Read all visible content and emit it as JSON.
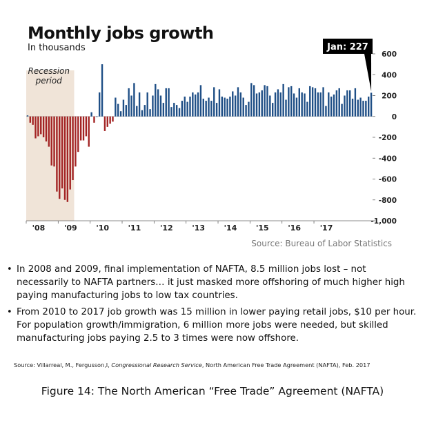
{
  "chart_data": {
    "type": "bar",
    "title": "Monthly jobs growth",
    "subtitle": "In thousands",
    "ylim": [
      -1000,
      600
    ],
    "yticks": [
      600,
      400,
      200,
      0,
      -200,
      -400,
      -600,
      -800,
      -1000
    ],
    "ytick_labels": [
      "600",
      "400",
      "200",
      "0",
      "-200",
      "-400",
      "-600",
      "-800",
      "-1,000"
    ],
    "xtick_labels": [
      "'08",
      "'09",
      "'10",
      "'11",
      "'12",
      "'13",
      "'14",
      "'15",
      "'16",
      "'17"
    ],
    "shaded_region_label": "Recession period",
    "shaded_region_months": [
      0,
      18
    ],
    "annotation": "Jan: 227",
    "colors": {
      "positive": "#1f4f86",
      "negative": "#a32424",
      "shade": "#f0e4d8",
      "callout": "#000000"
    },
    "values": [
      10,
      -60,
      -80,
      -210,
      -190,
      -170,
      -200,
      -240,
      -290,
      -470,
      -480,
      -720,
      -790,
      -690,
      -800,
      -820,
      -700,
      -610,
      -480,
      -340,
      -230,
      -230,
      -190,
      -290,
      40,
      -60,
      0,
      230,
      500,
      -140,
      -100,
      -70,
      -50,
      180,
      120,
      50,
      160,
      110,
      270,
      200,
      320,
      100,
      230,
      60,
      110,
      230,
      70,
      200,
      310,
      260,
      200,
      130,
      270,
      270,
      90,
      130,
      110,
      80,
      150,
      190,
      140,
      190,
      230,
      210,
      230,
      300,
      170,
      150,
      180,
      150,
      280,
      130,
      260,
      190,
      180,
      170,
      190,
      240,
      200,
      280,
      230,
      180,
      110,
      140,
      320,
      300,
      220,
      230,
      250,
      300,
      290,
      200,
      130,
      230,
      260,
      230,
      310,
      160,
      280,
      290,
      220,
      180,
      270,
      230,
      220,
      140,
      290,
      280,
      270,
      230,
      230,
      280,
      100,
      230,
      190,
      210,
      250,
      270,
      120,
      200,
      250,
      250,
      170,
      270,
      160,
      180,
      150,
      150,
      190,
      227
    ]
  },
  "source_credit": "Source: Bureau of Labor Statistics",
  "bullets": [
    "In 2008 and 2009, final implementation of NAFTA, 8.5 million jobs lost – not necessarily to NAFTA partners… it just masked more offshoring of much higher high paying manufacturing jobs to low tax countries.",
    "From 2010 to 2017 job growth was 15 million in lower paying retail jobs, $10 per hour.  For population growth/immigration, 6 million more jobs were needed, but skilled manufacturing jobs paying 2.5 to 3 times were now offshore."
  ],
  "citation": {
    "prefix": "Source: Villarreal, M., Fergusson,I, ",
    "italic": "Congressional Research Service",
    "suffix": ", North American Free Trade Agreement (NAFTA), Feb. 2017"
  },
  "caption": "Figure 14: The North American “Free Trade” Agreement (NAFTA)"
}
